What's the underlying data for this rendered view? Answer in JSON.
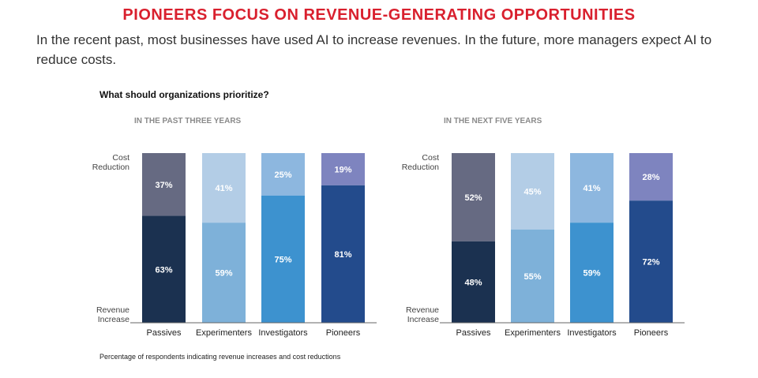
{
  "header": {
    "title": "PIONEERS FOCUS ON REVENUE-GENERATING OPPORTUNITIES",
    "subtitle": "In the recent past, most businesses have used AI to increase revenues. In the future, more managers expect AI to reduce costs."
  },
  "question": "What should organizations prioritize?",
  "footnote": "Percentage of respondents indicating revenue increases and cost reductions",
  "colors": {
    "title": "#d9202e",
    "cost": [
      "#666a82",
      "#b3cde6",
      "#8db7df",
      "#7e84bf"
    ],
    "revenue": [
      "#1b3150",
      "#7eb1d9",
      "#3d92cf",
      "#234b8c"
    ]
  },
  "chart_data": [
    {
      "type": "bar",
      "stacked": true,
      "title": "IN THE PAST THREE YEARS",
      "y_top_label": [
        "Cost",
        "Reduction"
      ],
      "y_bottom_label": [
        "Revenue",
        "Increase"
      ],
      "categories": [
        "Passives",
        "Experimenters",
        "Investigators",
        "Pioneers"
      ],
      "ylim": [
        0,
        100
      ],
      "series": [
        {
          "name": "Revenue Increase",
          "values": [
            63,
            59,
            75,
            81
          ],
          "labels": [
            "63%",
            "59%",
            "75%",
            "81%"
          ]
        },
        {
          "name": "Cost Reduction",
          "values": [
            37,
            41,
            25,
            19
          ],
          "labels": [
            "37%",
            "41%",
            "25%",
            "19%"
          ]
        }
      ]
    },
    {
      "type": "bar",
      "stacked": true,
      "title": "IN THE NEXT FIVE YEARS",
      "y_top_label": [
        "Cost",
        "Reduction"
      ],
      "y_bottom_label": [
        "Revenue",
        "Increase"
      ],
      "categories": [
        "Passives",
        "Experimenters",
        "Investigators",
        "Pioneers"
      ],
      "ylim": [
        0,
        100
      ],
      "series": [
        {
          "name": "Revenue Increase",
          "values": [
            48,
            55,
            59,
            72
          ],
          "labels": [
            "48%",
            "55%",
            "59%",
            "72%"
          ]
        },
        {
          "name": "Cost Reduction",
          "values": [
            52,
            45,
            41,
            28
          ],
          "labels": [
            "52%",
            "45%",
            "41%",
            "28%"
          ]
        }
      ]
    }
  ]
}
